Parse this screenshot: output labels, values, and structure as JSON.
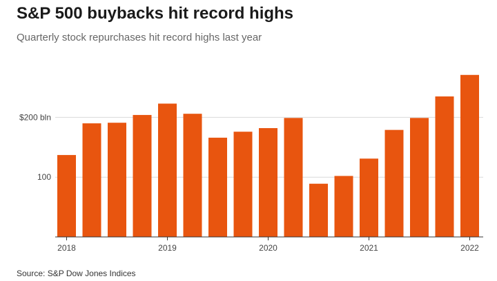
{
  "header": {
    "title": "S&P 500 buybacks hit record highs",
    "subtitle": "Quarterly stock repurchases hit record highs last year"
  },
  "footer": {
    "source": "Source: S&P Dow Jones Indices"
  },
  "colors": {
    "bar": "#e8550f",
    "grid": "#d9d9d9",
    "axis": "#333333"
  },
  "chart_data": {
    "type": "bar",
    "title": "S&P 500 buybacks hit record highs",
    "subtitle": "Quarterly stock repurchases hit record highs last year",
    "xlabel": "",
    "ylabel": "",
    "categories": [
      "2018 Q1",
      "2018 Q2",
      "2018 Q3",
      "2018 Q4",
      "2019 Q1",
      "2019 Q2",
      "2019 Q3",
      "2019 Q4",
      "2020 Q1",
      "2020 Q2",
      "2020 Q3",
      "2020 Q4",
      "2021 Q1",
      "2021 Q2",
      "2021 Q3",
      "2021 Q4",
      "2022 Q1"
    ],
    "values": [
      137,
      190,
      191,
      204,
      223,
      206,
      166,
      176,
      182,
      199,
      89,
      102,
      131,
      179,
      199,
      235,
      271
    ],
    "ylim": [
      0,
      290
    ],
    "yticks": [
      {
        "value": 100,
        "label": "100"
      },
      {
        "value": 200,
        "label": "$200 bln"
      }
    ],
    "xticks": [
      {
        "index": 0,
        "label": "2018"
      },
      {
        "index": 4,
        "label": "2019"
      },
      {
        "index": 8,
        "label": "2020"
      },
      {
        "index": 12,
        "label": "2021"
      },
      {
        "index": 16,
        "label": "2022"
      }
    ],
    "grid": true,
    "legend": "none"
  }
}
